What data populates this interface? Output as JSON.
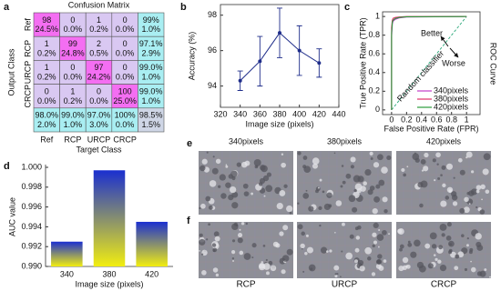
{
  "figure": {
    "panel_labels": [
      "a",
      "b",
      "c",
      "d",
      "e",
      "f"
    ],
    "image_columns": [
      "340pixels",
      "380pixels",
      "420pixels"
    ],
    "image_captions": [
      "RCP",
      "URCP",
      "CRCP"
    ]
  },
  "chart_data": [
    {
      "type": "confusion_matrix",
      "title": "Confusion Matrix",
      "x_label": "Target Class",
      "y_label": "Output Class",
      "classes": [
        "Ref",
        "RCP",
        "URCP",
        "CRCP"
      ],
      "counts": [
        [
          98,
          0,
          1,
          0
        ],
        [
          1,
          99,
          2,
          0
        ],
        [
          1,
          0,
          97,
          0
        ],
        [
          0,
          1,
          0,
          100
        ]
      ],
      "percents": [
        [
          "24.5%",
          "0.0%",
          "0.2%",
          "0.0%"
        ],
        [
          "0.2%",
          "24.8%",
          "0.5%",
          "0.0%"
        ],
        [
          "0.2%",
          "0.0%",
          "24.2%",
          "0.0%"
        ],
        [
          "0.0%",
          "0.2%",
          "0.0%",
          "25.0%"
        ]
      ],
      "row_summary": [
        [
          "99%",
          "1.0%"
        ],
        [
          "97.1%",
          "2.9%"
        ],
        [
          "99.0%",
          "1.0%"
        ],
        [
          "99.0%",
          "1.0%"
        ]
      ],
      "col_summary": [
        [
          "98.0%",
          "2.0%"
        ],
        [
          "99.0%",
          "1.0%"
        ],
        [
          "97.0%",
          "3.0%"
        ],
        [
          "100%",
          "0.0%"
        ]
      ],
      "overall": [
        "98.5%",
        "1.5%"
      ]
    },
    {
      "type": "errorline",
      "x_label": "Image size (pixels)",
      "y_label": "Accuracy (%)",
      "x": [
        340,
        360,
        380,
        400,
        420
      ],
      "values": [
        94.3,
        95.4,
        97.0,
        96.0,
        95.3
      ],
      "errors": [
        0.55,
        1.4,
        1.4,
        1.4,
        0.8
      ],
      "color": "#1f2d8a",
      "xlim": [
        320,
        440
      ],
      "xticks": [
        320,
        340,
        360,
        380,
        400,
        420,
        440
      ],
      "ylim": [
        92.8,
        98.6
      ],
      "yticks": [
        94,
        96,
        98
      ]
    },
    {
      "type": "roc",
      "x_label": "False Positive Rate (FPR)",
      "y_label": "True Positive Rate (TPR)",
      "side_title": "ROC Curve",
      "annotations": [
        "Better",
        "Worse",
        "Random classifier"
      ],
      "x": [
        0,
        0,
        0.01,
        0.02,
        0.05,
        0.1,
        0.2,
        1
      ],
      "series": [
        {
          "name": "340pixels",
          "color": "#c03cc8",
          "values": [
            0,
            0.78,
            0.92,
            0.95,
            0.97,
            0.985,
            0.995,
            1
          ]
        },
        {
          "name": "380pixels",
          "color": "#e0306a",
          "values": [
            0,
            0.88,
            0.96,
            0.98,
            0.99,
            0.995,
            1,
            1
          ]
        },
        {
          "name": "420pixels",
          "color": "#2a9d3a",
          "values": [
            0,
            0.82,
            0.94,
            0.96,
            0.98,
            0.99,
            0.997,
            1
          ]
        }
      ],
      "xlim": [
        -0.12,
        1.18
      ],
      "xticks": [
        0,
        0.2,
        0.4,
        0.6,
        0.8,
        1
      ],
      "ylim": [
        -0.05,
        1.05
      ],
      "yticks": [
        0,
        0.2,
        0.4,
        0.6,
        0.8,
        1
      ],
      "legend": "center right"
    },
    {
      "type": "bar",
      "x_label": "Image size (pixels)",
      "y_label": "AUC value",
      "categories": [
        "340",
        "380",
        "420"
      ],
      "values": [
        0.9925,
        0.9997,
        0.9945
      ],
      "ylim": [
        0.99,
        1.0
      ],
      "yticks": [
        {
          "value": 0.99,
          "label": "0.990"
        },
        {
          "value": 0.992,
          "label": "0.992"
        },
        {
          "value": 0.994,
          "label": "0.994"
        },
        {
          "value": 0.996,
          "label": "0.996"
        },
        {
          "value": 0.998,
          "label": "0.998"
        },
        {
          "value": 1.0,
          "label": "1.000"
        }
      ]
    }
  ]
}
